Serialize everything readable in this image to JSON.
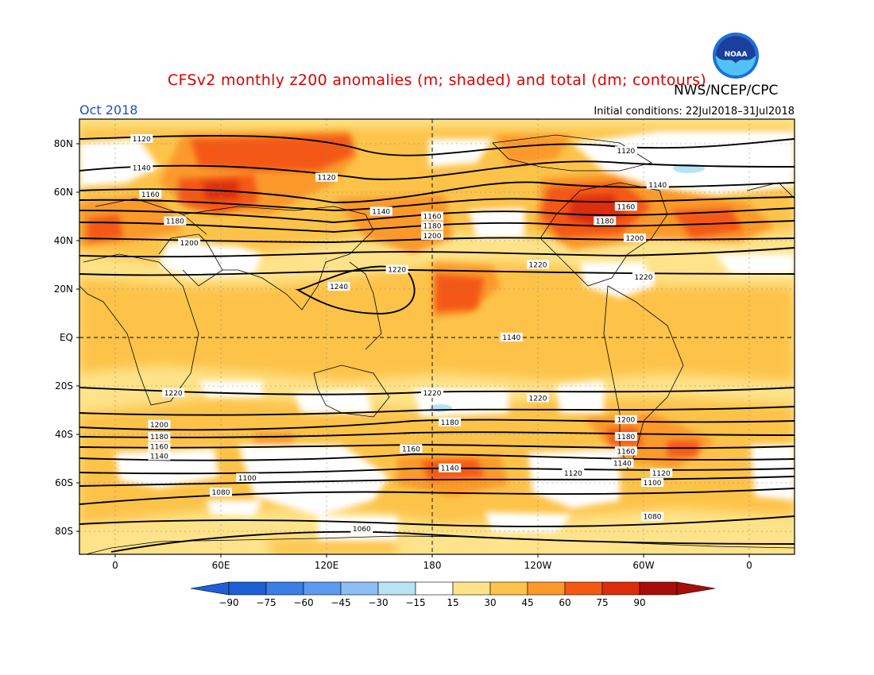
{
  "title": "CFSv2 monthly z200 anomalies (m; shaded) and total (dm; contours)",
  "valid_month": "Oct 2018",
  "agency": "NWS/NCEP/CPC",
  "initial_conditions": "Initial conditions: 22Jul2018–31Jul2018",
  "logo_text": "NOAA",
  "colors": {
    "title": "#dd0000",
    "subtitle": "#1a4fd0",
    "land_outline": "#000000"
  },
  "map": {
    "lat_labels": [
      {
        "lat": 80,
        "text": "80N"
      },
      {
        "lat": 60,
        "text": "60N"
      },
      {
        "lat": 40,
        "text": "40N"
      },
      {
        "lat": 20,
        "text": "20N"
      },
      {
        "lat": 0,
        "text": "EQ"
      },
      {
        "lat": -20,
        "text": "20S"
      },
      {
        "lat": -40,
        "text": "40S"
      },
      {
        "lat": -60,
        "text": "60S"
      },
      {
        "lat": -80,
        "text": "80S"
      }
    ],
    "lon_labels": [
      {
        "lon": 0,
        "text": "0"
      },
      {
        "lon": 60,
        "text": "60E"
      },
      {
        "lon": 120,
        "text": "120E"
      },
      {
        "lon": 180,
        "text": "180"
      },
      {
        "lon": 240,
        "text": "120W"
      },
      {
        "lon": 300,
        "text": "60W"
      },
      {
        "lon": 360,
        "text": "0"
      }
    ],
    "contours": [
      {
        "value": "1240",
        "labels": [
          [
            127,
            21
          ]
        ]
      },
      {
        "value": "1220",
        "labels": [
          [
            160,
            28
          ],
          [
            240,
            30
          ],
          [
            300,
            25
          ],
          [
            33,
            -23
          ],
          [
            180,
            -23
          ],
          [
            240,
            -25
          ]
        ]
      },
      {
        "value": "1200",
        "labels": [
          [
            42,
            39
          ],
          [
            180,
            42
          ],
          [
            295,
            41
          ],
          [
            25,
            -36
          ],
          [
            290,
            -34
          ]
        ]
      },
      {
        "value": "1180",
        "labels": [
          [
            34,
            48
          ],
          [
            180,
            46
          ],
          [
            278,
            48
          ],
          [
            25,
            -41
          ],
          [
            190,
            -35
          ],
          [
            290,
            -41
          ]
        ]
      },
      {
        "value": "1160",
        "labels": [
          [
            20,
            59
          ],
          [
            180,
            50
          ],
          [
            290,
            54
          ],
          [
            25,
            -45
          ],
          [
            168,
            -46
          ],
          [
            290,
            -47
          ]
        ]
      },
      {
        "value": "1140",
        "labels": [
          [
            15,
            70
          ],
          [
            151,
            52
          ],
          [
            225,
            0
          ],
          [
            308,
            63
          ],
          [
            25,
            -49
          ],
          [
            190,
            -54
          ],
          [
            288,
            -52
          ]
        ]
      },
      {
        "value": "1120",
        "labels": [
          [
            15,
            82
          ],
          [
            120,
            66
          ],
          [
            290,
            77
          ],
          [
            310,
            -56
          ],
          [
            260,
            -56
          ]
        ]
      },
      {
        "value": "1100",
        "labels": [
          [
            75,
            -58
          ],
          [
            305,
            -60
          ]
        ]
      },
      {
        "value": "1080",
        "labels": [
          [
            60,
            -64
          ],
          [
            305,
            -74
          ]
        ]
      },
      {
        "value": "1060",
        "labels": [
          [
            140,
            -79
          ]
        ]
      }
    ]
  },
  "colorbar": {
    "ticks": [
      "−90",
      "−75",
      "−60",
      "−45",
      "−30",
      "−15",
      "15",
      "30",
      "45",
      "60",
      "75",
      "90"
    ],
    "colors": [
      "#1f5fd6",
      "#3a7ee6",
      "#5e9bf0",
      "#8dbff4",
      "#b6e3f6",
      "#ffffff",
      "#fee38a",
      "#fdc34a",
      "#fb9a2a",
      "#f45914",
      "#dc2d0c",
      "#a80e08"
    ],
    "overflow_low": "#1f5fd6",
    "overflow_high": "#a80e08"
  }
}
